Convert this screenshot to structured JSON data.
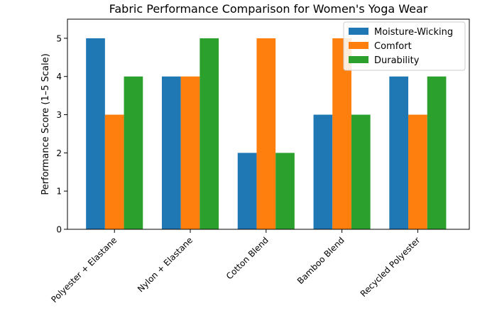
{
  "chart_data": {
    "type": "bar",
    "title": "Fabric Performance Comparison for Women's Yoga Wear",
    "xlabel": "",
    "ylabel": "Performance Score (1–5 Scale)",
    "ylim": [
      0,
      5.5
    ],
    "yticks": [
      "0",
      "1",
      "2",
      "3",
      "4",
      "5"
    ],
    "grid": false,
    "legend_position": "top-right",
    "categories": [
      "Polyester + Elastane",
      "Nylon + Elastane",
      "Cotton Blend",
      "Bamboo Blend",
      "Recycled Polyester"
    ],
    "series": [
      {
        "name": "Moisture-Wicking",
        "color": "#1f77b4",
        "values": [
          5,
          4,
          2,
          3,
          4
        ]
      },
      {
        "name": "Comfort",
        "color": "#ff7f0e",
        "values": [
          3,
          4,
          5,
          5,
          3
        ]
      },
      {
        "name": "Durability",
        "color": "#2ca02c",
        "values": [
          4,
          5,
          2,
          3,
          4
        ]
      }
    ]
  }
}
